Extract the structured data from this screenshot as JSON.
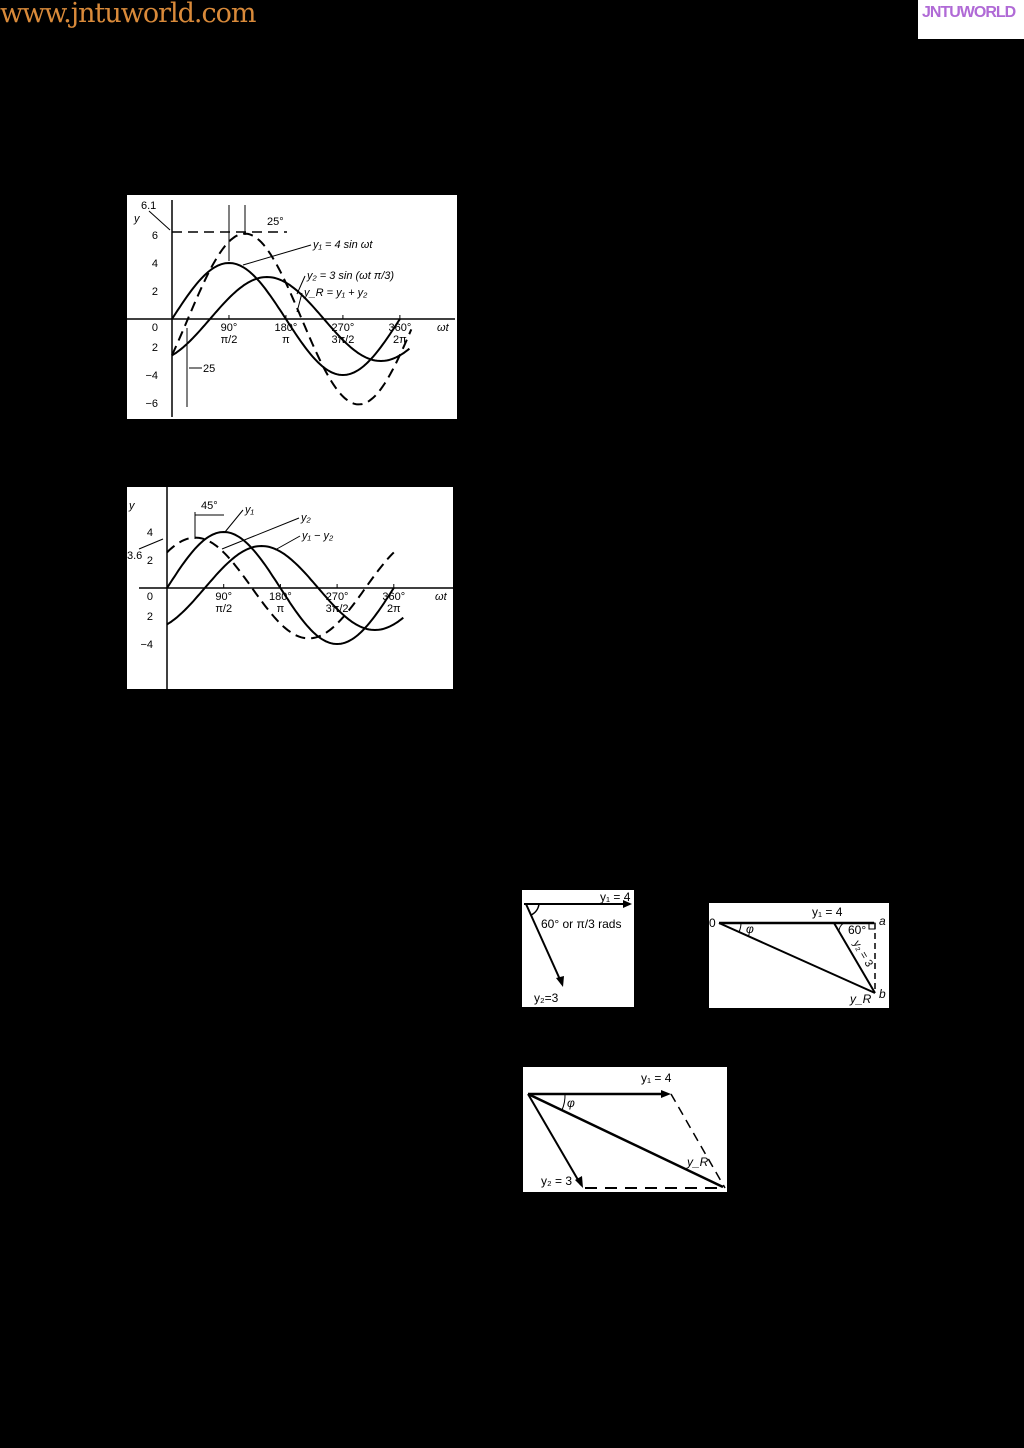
{
  "header": {
    "site_url": "www.jntuworld.com",
    "logo_text": "JNTUWORLD",
    "site_color": "#d98a3a",
    "logo_color": "#b06ad6"
  },
  "figure1": {
    "y_axis_label": "y",
    "x_axis_label": "ωt",
    "y_ticks": [
      "6",
      "4",
      "2",
      "0",
      "2",
      "−4",
      "−6"
    ],
    "x_ticks_deg": [
      "90°",
      "180°",
      "270°",
      "360°"
    ],
    "x_ticks_rad": [
      "π/2",
      "π",
      "3π/2",
      "2π"
    ],
    "annotations": {
      "peak": "6.1",
      "shift_top": "25°",
      "shift_bottom": "25"
    },
    "curves": [
      {
        "label": "y₁ = 4 sin ωt",
        "amplitude": 4,
        "phase_deg": 0,
        "style": "solid"
      },
      {
        "label": "y₂ = 3 sin (ωt  π/3)",
        "amplitude": 3,
        "phase_deg": -60,
        "style": "solid"
      },
      {
        "label": "y_R = y₁ + y₂",
        "amplitude": 6.1,
        "phase_deg": -25,
        "style": "dashed"
      }
    ]
  },
  "figure2": {
    "y_axis_label": "y",
    "x_axis_label": "ωt",
    "y_ticks": [
      "4",
      "2",
      "0",
      "2",
      "−4"
    ],
    "x_ticks_deg": [
      "90°",
      "180°",
      "270°",
      "360°"
    ],
    "x_ticks_rad": [
      "π/2",
      "π",
      "3π/2",
      "2π"
    ],
    "annotations": {
      "peak": "3.6",
      "shift": "45°"
    },
    "curves": [
      {
        "label": "y₁",
        "amplitude": 4,
        "phase_deg": 0,
        "style": "solid"
      },
      {
        "label": "y₂",
        "amplitude": 3,
        "phase_deg": -60,
        "style": "solid"
      },
      {
        "label": "y₁ − y₂",
        "amplitude": 3.6,
        "phase_deg": 45,
        "style": "dashed"
      }
    ]
  },
  "phasor1": {
    "y1": "y₁ = 4",
    "y2": "y₂=3",
    "angle": "60° or π/3 rads"
  },
  "phasor2": {
    "origin": "0",
    "y1": "y₁ = 4",
    "angle60": "60°",
    "phi": "φ",
    "a": "a",
    "b": "b",
    "y2": "y₂ = 3",
    "yR": "y_R"
  },
  "phasor3": {
    "y1": "y₁ = 4",
    "y2": "y₂ = 3",
    "phi": "φ",
    "yR": "y_R"
  }
}
